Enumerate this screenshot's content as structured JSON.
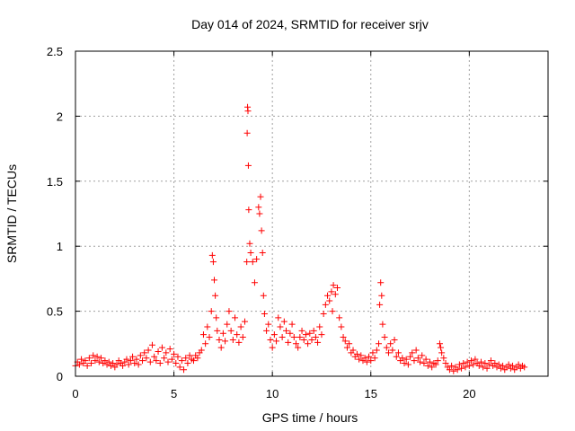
{
  "chart_data": {
    "type": "scatter",
    "title": "Day 014 of 2024, SRMTID for receiver srjv",
    "xlabel": "GPS time / hours",
    "ylabel": "SRMTID / TECUs",
    "xlim": [
      0,
      24
    ],
    "ylim": [
      0,
      2.5
    ],
    "x_ticks": [
      {
        "value": 0,
        "label": "0"
      },
      {
        "value": 5,
        "label": "5"
      },
      {
        "value": 10,
        "label": "10"
      },
      {
        "value": 15,
        "label": "15"
      },
      {
        "value": 20,
        "label": "20"
      }
    ],
    "y_ticks": [
      {
        "value": 0,
        "label": "0"
      },
      {
        "value": 0.5,
        "label": "0.5"
      },
      {
        "value": 1,
        "label": "1"
      },
      {
        "value": 1.5,
        "label": "1.5"
      },
      {
        "value": 2,
        "label": "2"
      },
      {
        "value": 2.5,
        "label": "2.5"
      }
    ],
    "grid": true,
    "marker": "+",
    "color": "#ff0000",
    "series": [
      {
        "name": "SRMTID",
        "points": [
          [
            0.0,
            0.08
          ],
          [
            0.1,
            0.11
          ],
          [
            0.2,
            0.09
          ],
          [
            0.3,
            0.13
          ],
          [
            0.4,
            0.1
          ],
          [
            0.5,
            0.12
          ],
          [
            0.6,
            0.08
          ],
          [
            0.7,
            0.14
          ],
          [
            0.8,
            0.1
          ],
          [
            0.9,
            0.16
          ],
          [
            1.0,
            0.12
          ],
          [
            1.1,
            0.15
          ],
          [
            1.2,
            0.11
          ],
          [
            1.3,
            0.14
          ],
          [
            1.4,
            0.1
          ],
          [
            1.5,
            0.12
          ],
          [
            1.6,
            0.09
          ],
          [
            1.7,
            0.11
          ],
          [
            1.8,
            0.08
          ],
          [
            1.9,
            0.1
          ],
          [
            2.0,
            0.07
          ],
          [
            2.1,
            0.09
          ],
          [
            2.2,
            0.12
          ],
          [
            2.3,
            0.1
          ],
          [
            2.4,
            0.08
          ],
          [
            2.5,
            0.11
          ],
          [
            2.6,
            0.13
          ],
          [
            2.7,
            0.09
          ],
          [
            2.8,
            0.12
          ],
          [
            2.9,
            0.15
          ],
          [
            3.0,
            0.1
          ],
          [
            3.1,
            0.13
          ],
          [
            3.2,
            0.09
          ],
          [
            3.3,
            0.16
          ],
          [
            3.4,
            0.12
          ],
          [
            3.5,
            0.18
          ],
          [
            3.6,
            0.14
          ],
          [
            3.7,
            0.2
          ],
          [
            3.8,
            0.11
          ],
          [
            3.9,
            0.24
          ],
          [
            4.0,
            0.15
          ],
          [
            4.1,
            0.12
          ],
          [
            4.2,
            0.19
          ],
          [
            4.3,
            0.1
          ],
          [
            4.4,
            0.22
          ],
          [
            4.5,
            0.14
          ],
          [
            4.6,
            0.18
          ],
          [
            4.7,
            0.11
          ],
          [
            4.8,
            0.21
          ],
          [
            4.9,
            0.13
          ],
          [
            5.0,
            0.17
          ],
          [
            5.1,
            0.1
          ],
          [
            5.2,
            0.15
          ],
          [
            5.3,
            0.07
          ],
          [
            5.4,
            0.12
          ],
          [
            5.5,
            0.05
          ],
          [
            5.6,
            0.14
          ],
          [
            5.7,
            0.1
          ],
          [
            5.8,
            0.16
          ],
          [
            5.9,
            0.13
          ],
          [
            6.0,
            0.12
          ],
          [
            6.1,
            0.16
          ],
          [
            6.2,
            0.14
          ],
          [
            6.3,
            0.18
          ],
          [
            6.4,
            0.2
          ],
          [
            6.5,
            0.32
          ],
          [
            6.6,
            0.25
          ],
          [
            6.7,
            0.38
          ],
          [
            6.8,
            0.3
          ],
          [
            6.9,
            0.5
          ],
          [
            6.95,
            0.93
          ],
          [
            7.0,
            0.88
          ],
          [
            7.05,
            0.74
          ],
          [
            7.1,
            0.62
          ],
          [
            7.15,
            0.45
          ],
          [
            7.2,
            0.35
          ],
          [
            7.3,
            0.28
          ],
          [
            7.4,
            0.22
          ],
          [
            7.5,
            0.33
          ],
          [
            7.6,
            0.27
          ],
          [
            7.7,
            0.4
          ],
          [
            7.8,
            0.5
          ],
          [
            7.9,
            0.35
          ],
          [
            8.0,
            0.28
          ],
          [
            8.1,
            0.45
          ],
          [
            8.2,
            0.32
          ],
          [
            8.3,
            0.26
          ],
          [
            8.4,
            0.38
          ],
          [
            8.5,
            0.3
          ],
          [
            8.6,
            0.42
          ],
          [
            8.7,
            0.88
          ],
          [
            8.72,
            1.87
          ],
          [
            8.74,
            2.07
          ],
          [
            8.76,
            2.04
          ],
          [
            8.78,
            1.62
          ],
          [
            8.8,
            1.28
          ],
          [
            8.85,
            1.02
          ],
          [
            8.9,
            0.95
          ],
          [
            9.0,
            0.88
          ],
          [
            9.1,
            0.72
          ],
          [
            9.2,
            0.9
          ],
          [
            9.3,
            1.3
          ],
          [
            9.35,
            1.25
          ],
          [
            9.4,
            1.38
          ],
          [
            9.45,
            1.12
          ],
          [
            9.5,
            0.95
          ],
          [
            9.55,
            0.62
          ],
          [
            9.6,
            0.48
          ],
          [
            9.7,
            0.35
          ],
          [
            9.8,
            0.4
          ],
          [
            9.9,
            0.28
          ],
          [
            10.0,
            0.22
          ],
          [
            10.1,
            0.32
          ],
          [
            10.2,
            0.27
          ],
          [
            10.3,
            0.45
          ],
          [
            10.4,
            0.38
          ],
          [
            10.5,
            0.3
          ],
          [
            10.6,
            0.42
          ],
          [
            10.7,
            0.35
          ],
          [
            10.8,
            0.26
          ],
          [
            10.9,
            0.33
          ],
          [
            11.0,
            0.4
          ],
          [
            11.1,
            0.3
          ],
          [
            11.2,
            0.25
          ],
          [
            11.3,
            0.22
          ],
          [
            11.4,
            0.3
          ],
          [
            11.5,
            0.35
          ],
          [
            11.6,
            0.28
          ],
          [
            11.7,
            0.32
          ],
          [
            11.8,
            0.25
          ],
          [
            11.9,
            0.33
          ],
          [
            12.0,
            0.28
          ],
          [
            12.1,
            0.35
          ],
          [
            12.2,
            0.3
          ],
          [
            12.3,
            0.26
          ],
          [
            12.4,
            0.38
          ],
          [
            12.5,
            0.32
          ],
          [
            12.6,
            0.48
          ],
          [
            12.7,
            0.55
          ],
          [
            12.8,
            0.62
          ],
          [
            12.9,
            0.58
          ],
          [
            13.0,
            0.65
          ],
          [
            13.05,
            0.5
          ],
          [
            13.1,
            0.7
          ],
          [
            13.2,
            0.63
          ],
          [
            13.3,
            0.68
          ],
          [
            13.4,
            0.45
          ],
          [
            13.5,
            0.38
          ],
          [
            13.6,
            0.3
          ],
          [
            13.7,
            0.27
          ],
          [
            13.8,
            0.22
          ],
          [
            13.9,
            0.25
          ],
          [
            14.0,
            0.18
          ],
          [
            14.1,
            0.2
          ],
          [
            14.2,
            0.15
          ],
          [
            14.3,
            0.17
          ],
          [
            14.4,
            0.13
          ],
          [
            14.5,
            0.16
          ],
          [
            14.6,
            0.12
          ],
          [
            14.7,
            0.14
          ],
          [
            14.8,
            0.11
          ],
          [
            14.9,
            0.15
          ],
          [
            15.0,
            0.12
          ],
          [
            15.1,
            0.18
          ],
          [
            15.2,
            0.14
          ],
          [
            15.3,
            0.2
          ],
          [
            15.4,
            0.25
          ],
          [
            15.45,
            0.55
          ],
          [
            15.5,
            0.72
          ],
          [
            15.55,
            0.62
          ],
          [
            15.6,
            0.4
          ],
          [
            15.7,
            0.3
          ],
          [
            15.8,
            0.22
          ],
          [
            15.9,
            0.18
          ],
          [
            16.0,
            0.25
          ],
          [
            16.1,
            0.2
          ],
          [
            16.2,
            0.28
          ],
          [
            16.3,
            0.15
          ],
          [
            16.4,
            0.18
          ],
          [
            16.5,
            0.12
          ],
          [
            16.6,
            0.14
          ],
          [
            16.7,
            0.1
          ],
          [
            16.8,
            0.13
          ],
          [
            16.9,
            0.09
          ],
          [
            17.0,
            0.15
          ],
          [
            17.1,
            0.18
          ],
          [
            17.2,
            0.12
          ],
          [
            17.3,
            0.2
          ],
          [
            17.4,
            0.14
          ],
          [
            17.5,
            0.11
          ],
          [
            17.6,
            0.16
          ],
          [
            17.7,
            0.1
          ],
          [
            17.8,
            0.13
          ],
          [
            17.9,
            0.08
          ],
          [
            18.0,
            0.11
          ],
          [
            18.1,
            0.07
          ],
          [
            18.2,
            0.1
          ],
          [
            18.3,
            0.09
          ],
          [
            18.4,
            0.12
          ],
          [
            18.5,
            0.25
          ],
          [
            18.55,
            0.22
          ],
          [
            18.6,
            0.18
          ],
          [
            18.7,
            0.14
          ],
          [
            18.8,
            0.1
          ],
          [
            18.9,
            0.07
          ],
          [
            19.0,
            0.05
          ],
          [
            19.1,
            0.08
          ],
          [
            19.2,
            0.04
          ],
          [
            19.3,
            0.07
          ],
          [
            19.4,
            0.05
          ],
          [
            19.5,
            0.09
          ],
          [
            19.6,
            0.06
          ],
          [
            19.7,
            0.1
          ],
          [
            19.8,
            0.07
          ],
          [
            19.9,
            0.11
          ],
          [
            20.0,
            0.08
          ],
          [
            20.1,
            0.12
          ],
          [
            20.2,
            0.09
          ],
          [
            20.3,
            0.13
          ],
          [
            20.4,
            0.1
          ],
          [
            20.5,
            0.08
          ],
          [
            20.6,
            0.11
          ],
          [
            20.7,
            0.07
          ],
          [
            20.8,
            0.1
          ],
          [
            20.9,
            0.06
          ],
          [
            21.0,
            0.09
          ],
          [
            21.1,
            0.12
          ],
          [
            21.2,
            0.08
          ],
          [
            21.3,
            0.1
          ],
          [
            21.4,
            0.07
          ],
          [
            21.5,
            0.09
          ],
          [
            21.6,
            0.06
          ],
          [
            21.7,
            0.08
          ],
          [
            21.8,
            0.05
          ],
          [
            21.9,
            0.07
          ],
          [
            22.0,
            0.09
          ],
          [
            22.1,
            0.06
          ],
          [
            22.2,
            0.08
          ],
          [
            22.3,
            0.05
          ],
          [
            22.4,
            0.07
          ],
          [
            22.5,
            0.09
          ],
          [
            22.6,
            0.06
          ],
          [
            22.7,
            0.08
          ],
          [
            22.8,
            0.07
          ]
        ]
      }
    ]
  }
}
